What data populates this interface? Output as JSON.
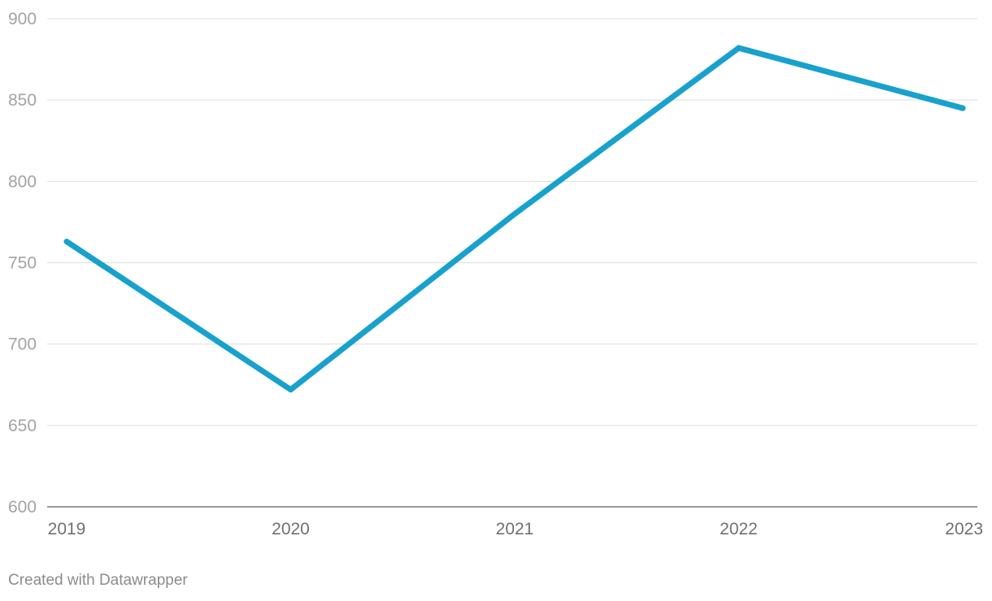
{
  "chart_data": {
    "type": "line",
    "x": [
      "2019",
      "2020",
      "2021",
      "2022",
      "2023"
    ],
    "series": [
      {
        "values": [
          763,
          672,
          780,
          882,
          845
        ],
        "color": "#18a1cd"
      }
    ],
    "yticks": [
      600,
      650,
      700,
      750,
      800,
      850,
      900
    ],
    "ylim": [
      600,
      900
    ],
    "grid": true,
    "title": "",
    "xlabel": "",
    "ylabel": ""
  },
  "footer": {
    "credit": "Created with Datawrapper"
  }
}
